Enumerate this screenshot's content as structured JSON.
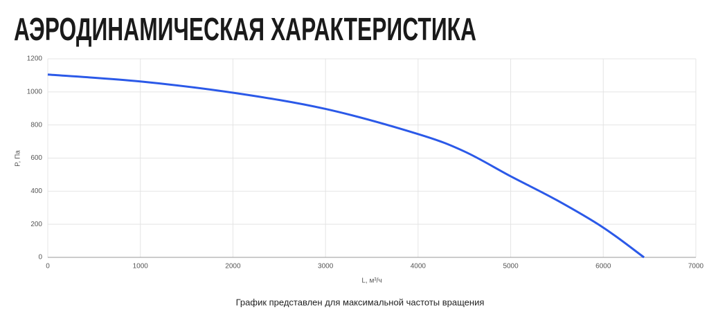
{
  "chart_data": {
    "type": "line",
    "title": "АЭРОДИНАМИЧЕСКАЯ ХАРАКТЕРИСТИКА",
    "x_label": "L, м³/ч",
    "y_label": "P, Па",
    "note": "График представлен для максимальной частоты вращения",
    "x": [
      0,
      1000,
      2000,
      3000,
      4000,
      4500,
      5000,
      5500,
      6000,
      6440
    ],
    "series": [
      {
        "name": "P",
        "color": "#2b59e8",
        "values": [
          1105,
          1063,
          995,
          897,
          745,
          640,
          490,
          345,
          180,
          0
        ]
      }
    ],
    "xlim": [
      0,
      7000
    ],
    "xticks": [
      0,
      1000,
      2000,
      3000,
      4000,
      5000,
      6000,
      7000
    ],
    "ylim": [
      0,
      1200
    ],
    "yticks": [
      0,
      200,
      400,
      600,
      800,
      1000,
      1200
    ],
    "grid": true
  }
}
